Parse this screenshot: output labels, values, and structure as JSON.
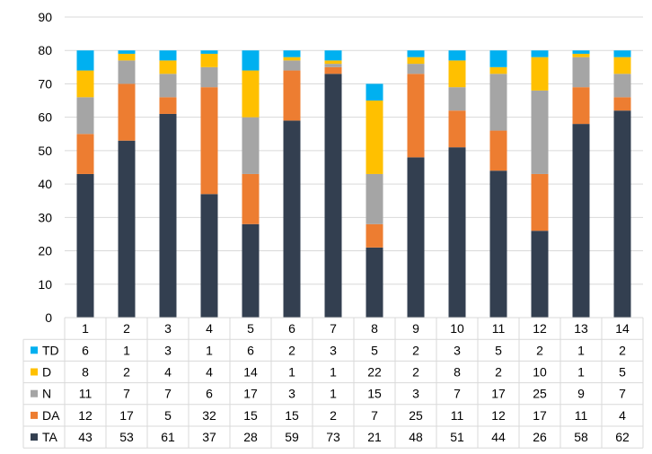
{
  "chart_data": {
    "type": "bar",
    "stacked": true,
    "categories": [
      "1",
      "2",
      "3",
      "4",
      "5",
      "6",
      "7",
      "8",
      "9",
      "10",
      "11",
      "12",
      "13",
      "14"
    ],
    "series": [
      {
        "name": "TA",
        "color": "#333F50",
        "values": [
          43,
          53,
          61,
          37,
          28,
          59,
          73,
          21,
          48,
          51,
          44,
          26,
          58,
          62
        ]
      },
      {
        "name": "DA",
        "color": "#ED7D31",
        "values": [
          12,
          17,
          5,
          32,
          15,
          15,
          2,
          7,
          25,
          11,
          12,
          17,
          11,
          4
        ]
      },
      {
        "name": "N",
        "color": "#A5A5A5",
        "values": [
          11,
          7,
          7,
          6,
          17,
          3,
          1,
          15,
          3,
          7,
          17,
          25,
          9,
          7
        ]
      },
      {
        "name": "D",
        "color": "#FFC000",
        "values": [
          8,
          2,
          4,
          4,
          14,
          1,
          1,
          22,
          2,
          8,
          2,
          10,
          1,
          5
        ]
      },
      {
        "name": "TD",
        "color": "#00B0F0",
        "values": [
          6,
          1,
          3,
          1,
          6,
          2,
          3,
          5,
          2,
          3,
          5,
          2,
          1,
          2
        ]
      }
    ],
    "ylim": [
      0,
      90
    ],
    "yticks": [
      0,
      10,
      20,
      30,
      40,
      50,
      60,
      70,
      80,
      90
    ],
    "grid": true,
    "legend": "data table below chart",
    "table_row_order": [
      "TD",
      "D",
      "N",
      "DA",
      "TA"
    ]
  }
}
